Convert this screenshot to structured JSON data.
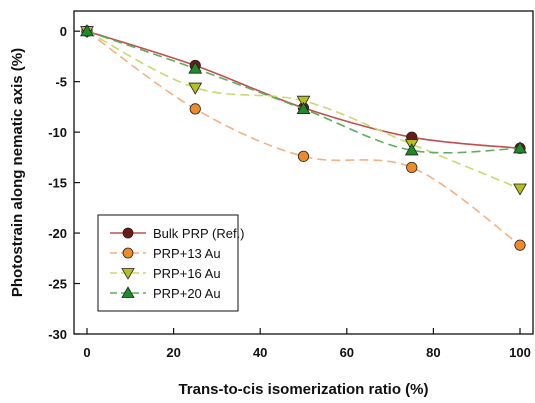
{
  "chart_data": {
    "type": "line",
    "xlabel": "Trans-to-cis isomerization ratio (%)",
    "ylabel": "Photostrain along nematic axis (%)",
    "xlim": [
      -3,
      103
    ],
    "ylim": [
      -30,
      2
    ],
    "xticks": [
      0,
      20,
      40,
      60,
      80,
      100
    ],
    "yticks": [
      0,
      -5,
      -10,
      -15,
      -20,
      -25,
      -30
    ],
    "xtick_labels": [
      "0",
      "20",
      "40",
      "60",
      "80",
      "100"
    ],
    "ytick_labels": [
      "0",
      "-5",
      "-10",
      "-15",
      "-20",
      "-25",
      "-30"
    ],
    "grid": false,
    "legend_position": "bottom-left",
    "x": [
      0,
      25,
      50,
      75,
      100
    ],
    "series": [
      {
        "name": "Bulk PRP (Ref.)",
        "values": [
          0,
          -3.4,
          -7.6,
          -10.5,
          -11.6
        ],
        "color": "#c0504d",
        "marker": "circle",
        "marker_fill": "#6b1a14",
        "dash": "solid"
      },
      {
        "name": "PRP+13 Au",
        "values": [
          0,
          -7.7,
          -12.4,
          -13.5,
          -21.2
        ],
        "color": "#f4b183",
        "marker": "circle",
        "marker_fill": "#ed8b2a",
        "dash": "dashed"
      },
      {
        "name": "PRP+16 Au",
        "values": [
          0,
          -5.6,
          -6.9,
          -11.2,
          -15.6
        ],
        "color": "#c9d96f",
        "marker": "triangle-down",
        "marker_fill": "#b3bf23",
        "dash": "dashed"
      },
      {
        "name": "PRP+20 Au",
        "values": [
          0,
          -3.7,
          -7.7,
          -11.8,
          -11.6
        ],
        "color": "#5fae5f",
        "marker": "triangle-up",
        "marker_fill": "#1f8a2a",
        "dash": "dashed"
      }
    ]
  }
}
